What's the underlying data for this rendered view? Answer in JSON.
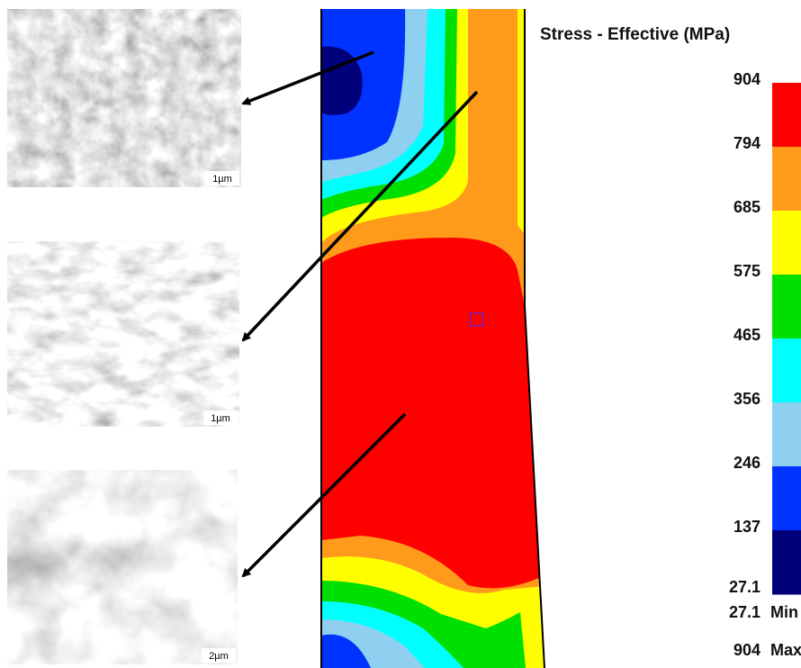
{
  "micrographs": [
    {
      "scale": "1µm"
    },
    {
      "scale": "1µm"
    },
    {
      "scale": "2µm"
    }
  ],
  "legend": {
    "title": "Stress - Effective (MPa)",
    "ticks": [
      904,
      794,
      685,
      575,
      465,
      356,
      246,
      137,
      27.1
    ],
    "band_colors": [
      "#ff0000",
      "#ff9a1a",
      "#ffff00",
      "#00e000",
      "#00ffff",
      "#8fd0f0",
      "#0033ff",
      "#00007a"
    ],
    "min_value": 27.1,
    "min_label": "Min",
    "max_value": 904,
    "max_label": "Max"
  }
}
